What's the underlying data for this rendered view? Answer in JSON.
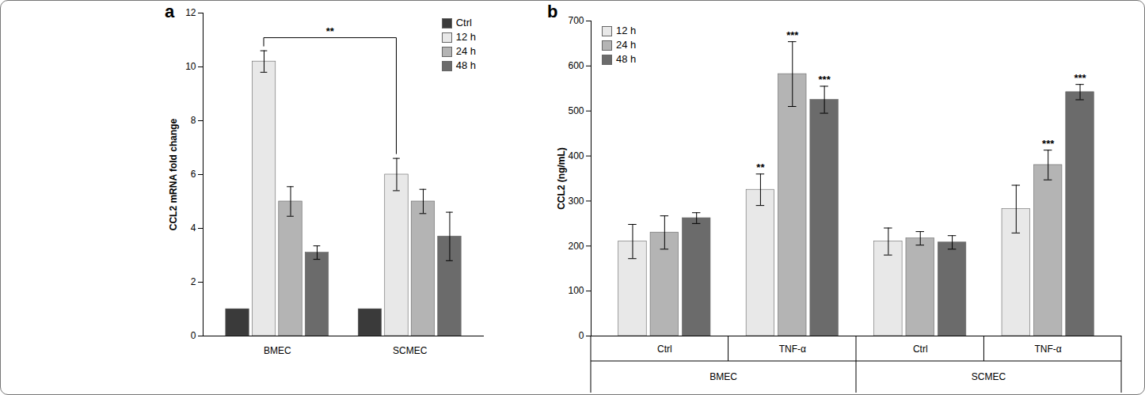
{
  "chart_data": [
    {
      "type": "bar",
      "title": "a",
      "ylabel": "CCL2 mRNA fold change",
      "categories": [
        "BMEC",
        "SCMEC"
      ],
      "series": [
        {
          "name": "Ctrl",
          "color": "#3a3a3a",
          "values": [
            1,
            1
          ],
          "errors": [
            0,
            0
          ]
        },
        {
          "name": "12 h",
          "color": "#e8e8e8",
          "values": [
            10.2,
            6.0
          ],
          "errors": [
            0.4,
            0.6
          ]
        },
        {
          "name": "24 h",
          "color": "#b4b4b4",
          "values": [
            5.0,
            5.0
          ],
          "errors": [
            0.55,
            0.45
          ]
        },
        {
          "name": "48 h",
          "color": "#6b6b6b",
          "values": [
            3.1,
            3.7
          ],
          "errors": [
            0.25,
            0.9
          ]
        }
      ],
      "bracket": {
        "label": "**",
        "series": "12 h",
        "categories": [
          "BMEC",
          "SCMEC"
        ]
      },
      "ylim": [
        0,
        12
      ],
      "yticks": [
        0,
        2,
        4,
        6,
        8,
        10,
        12
      ],
      "legend": "upper right",
      "grid": false
    },
    {
      "type": "bar",
      "title": "b",
      "ylabel": "CCL2 (ng/mL)",
      "categories": [
        "Ctrl",
        "TNF-α",
        "Ctrl",
        "TNF-α"
      ],
      "group_labels": [
        "BMEC",
        "SCMEC"
      ],
      "series": [
        {
          "name": "12 h",
          "color": "#e8e8e8",
          "values": [
            210,
            325,
            210,
            282
          ],
          "errors": [
            38,
            35,
            30,
            53
          ],
          "significance": [
            null,
            "**",
            null,
            null
          ]
        },
        {
          "name": "24 h",
          "color": "#b4b4b4",
          "values": [
            230,
            582,
            217,
            380
          ],
          "errors": [
            37,
            72,
            15,
            33
          ],
          "significance": [
            null,
            "***",
            null,
            "***"
          ]
        },
        {
          "name": "48 h",
          "color": "#6b6b6b",
          "values": [
            262,
            525,
            208,
            542
          ],
          "errors": [
            12,
            30,
            15,
            17
          ],
          "significance": [
            null,
            "***",
            null,
            "***"
          ]
        }
      ],
      "ylim": [
        0,
        700
      ],
      "yticks": [
        0,
        100,
        200,
        300,
        400,
        500,
        600,
        700
      ],
      "legend": "upper left",
      "grid": false
    }
  ]
}
